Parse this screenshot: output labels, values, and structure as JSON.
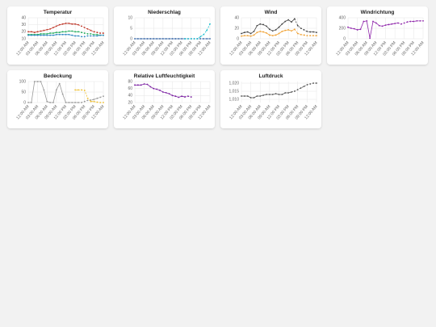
{
  "chart_data": [
    {
      "type": "line",
      "title": "Temperatur",
      "grid": true,
      "forecast_from": 17,
      "categories": [
        "12:00 AM",
        null,
        null,
        "03:00 AM",
        null,
        null,
        "06:00 AM",
        null,
        null,
        "09:00 AM",
        null,
        null,
        "12:00 PM",
        null,
        null,
        "03:00 PM",
        null,
        null,
        "06:00 PM",
        null,
        null,
        "09:00 PM",
        null,
        null,
        "12:00 AM"
      ],
      "ylim": [
        10,
        40
      ],
      "yticks": [
        10,
        20,
        30,
        40
      ],
      "series": [
        {
          "color": "#c0392b",
          "values": [
            20,
            20,
            19,
            20,
            21,
            22,
            23,
            24,
            26,
            28,
            30,
            31,
            32,
            32,
            31,
            31,
            30,
            28,
            26,
            24,
            22,
            20,
            19,
            18,
            18
          ]
        },
        {
          "color": "#27ae60",
          "values": [
            16,
            16,
            16,
            16,
            17,
            17,
            17,
            18,
            18,
            19,
            19,
            20,
            20,
            21,
            21,
            20,
            20,
            19,
            18,
            17,
            17,
            16,
            16,
            15,
            15
          ]
        },
        {
          "color": "#2e86c1",
          "values": [
            15,
            15,
            15,
            15,
            15,
            15,
            15,
            15,
            15,
            16,
            16,
            16,
            16,
            16,
            15,
            14,
            14,
            13,
            13,
            14,
            14,
            14,
            14,
            15,
            15
          ]
        }
      ]
    },
    {
      "type": "line",
      "title": "Niederschlag",
      "grid": true,
      "forecast_from": 17,
      "categories": [
        "12:00 AM",
        null,
        null,
        "03:00 AM",
        null,
        null,
        "06:00 AM",
        null,
        null,
        "09:00 AM",
        null,
        null,
        "12:00 PM",
        null,
        null,
        "03:00 PM",
        null,
        null,
        "06:00 PM",
        null,
        null,
        "09:00 PM",
        null,
        null,
        "12:00 AM"
      ],
      "ylim": [
        0,
        10
      ],
      "yticks": [
        0,
        5,
        10
      ],
      "series": [
        {
          "color": "#2e5fa3",
          "values": [
            0,
            0,
            0,
            0,
            0,
            0,
            0,
            0,
            0,
            0,
            0,
            0,
            0,
            0,
            0,
            0,
            0,
            0,
            0,
            0,
            0,
            0,
            0,
            0,
            0
          ]
        },
        {
          "color": "#17becf",
          "values": [
            null,
            null,
            null,
            null,
            null,
            null,
            null,
            null,
            null,
            null,
            null,
            null,
            null,
            null,
            null,
            null,
            0,
            0,
            0,
            0,
            0,
            1,
            2,
            4,
            7
          ]
        }
      ]
    },
    {
      "type": "line",
      "title": "Wind",
      "grid": true,
      "forecast_from": 18,
      "categories": [
        "12:00 AM",
        null,
        null,
        "03:00 AM",
        null,
        null,
        "06:00 AM",
        null,
        null,
        "09:00 AM",
        null,
        null,
        "12:00 PM",
        null,
        null,
        "03:00 PM",
        null,
        null,
        "06:00 PM",
        null,
        null,
        "09:00 PM",
        null,
        null,
        "12:00 AM"
      ],
      "ylim": [
        0,
        40
      ],
      "yticks": [
        0,
        20,
        40
      ],
      "series": [
        {
          "color": "#444444",
          "values": [
            10,
            12,
            13,
            10,
            14,
            25,
            28,
            27,
            24,
            18,
            15,
            17,
            22,
            28,
            33,
            36,
            32,
            38,
            25,
            20,
            17,
            14,
            13,
            13,
            12
          ]
        },
        {
          "color": "#f0a030",
          "values": [
            5,
            6,
            6,
            5,
            7,
            12,
            14,
            13,
            11,
            7,
            6,
            7,
            10,
            14,
            16,
            17,
            15,
            18,
            10,
            8,
            7,
            6,
            6,
            6,
            6
          ]
        }
      ]
    },
    {
      "type": "line",
      "title": "Windrichtung",
      "grid": true,
      "forecast_from": 17,
      "categories": [
        "12:00 AM",
        null,
        null,
        "03:00 AM",
        null,
        null,
        "06:00 AM",
        null,
        null,
        "09:00 AM",
        null,
        null,
        "12:00 PM",
        null,
        null,
        "03:00 PM",
        null,
        null,
        "06:00 PM",
        null,
        null,
        "09:00 PM",
        null,
        null,
        "12:00 AM"
      ],
      "ylim": [
        0,
        400
      ],
      "yticks": [
        0,
        200,
        400
      ],
      "series": [
        {
          "color": "#8e24aa",
          "values": [
            220,
            200,
            190,
            170,
            180,
            330,
            340,
            10,
            330,
            300,
            250,
            240,
            260,
            270,
            280,
            290,
            300,
            280,
            300,
            320,
            330,
            330,
            340,
            340,
            340
          ]
        }
      ]
    },
    {
      "type": "line",
      "title": "Bedeckung",
      "grid": true,
      "forecast_from": 17,
      "categories": [
        "12:00 AM",
        null,
        null,
        "03:00 AM",
        null,
        null,
        "06:00 AM",
        null,
        null,
        "09:00 AM",
        null,
        null,
        "12:00 PM",
        null,
        null,
        "03:00 PM",
        null,
        null,
        "06:00 PM",
        null,
        null,
        "09:00 PM",
        null,
        null,
        "12:00 AM"
      ],
      "ylim": [
        0,
        100
      ],
      "yticks": [
        0,
        50,
        100
      ],
      "series": [
        {
          "color": "#999999",
          "values": [
            0,
            0,
            100,
            100,
            100,
            60,
            5,
            0,
            0,
            60,
            90,
            40,
            0,
            0,
            0,
            0,
            0,
            0,
            5,
            10,
            12,
            15,
            20,
            25,
            30
          ]
        },
        {
          "color": "#f0c030",
          "values": [
            null,
            null,
            null,
            null,
            null,
            null,
            null,
            null,
            null,
            null,
            null,
            null,
            null,
            null,
            null,
            60,
            60,
            60,
            58,
            20,
            5,
            5,
            2,
            0,
            0
          ]
        }
      ]
    },
    {
      "type": "line",
      "title": "Relative Luftfeuchtigkeit",
      "grid": true,
      "forecast_from": 17,
      "categories": [
        "12:00 AM",
        null,
        null,
        "03:00 AM",
        null,
        null,
        "06:00 AM",
        null,
        null,
        "09:00 AM",
        null,
        null,
        "12:00 PM",
        null,
        null,
        "03:00 PM",
        null,
        null,
        "06:00 PM",
        null,
        null,
        "09:00 PM",
        null,
        null,
        "12:00 AM"
      ],
      "ylim": [
        20,
        80
      ],
      "yticks": [
        20,
        40,
        60,
        80
      ],
      "series": [
        {
          "color": "#7b1fa2",
          "values": [
            70,
            70,
            70,
            73,
            72,
            65,
            60,
            58,
            55,
            50,
            48,
            45,
            40,
            38,
            35,
            38,
            36,
            38,
            36,
            null,
            null,
            null,
            null,
            null,
            null
          ]
        }
      ]
    },
    {
      "type": "line",
      "title": "Luftdruck",
      "grid": true,
      "forecast_from": 17,
      "categories": [
        "12:00 AM",
        null,
        null,
        "03:00 AM",
        null,
        null,
        "06:00 AM",
        null,
        null,
        "09:00 AM",
        null,
        null,
        "12:00 PM",
        null,
        null,
        "03:00 PM",
        null,
        null,
        "06:00 PM",
        null,
        null,
        "09:00 PM",
        null,
        null,
        "12:00 AM"
      ],
      "ylim": [
        1008,
        1021
      ],
      "yticks": [
        {
          "value": 1010,
          "label": "1,010"
        },
        {
          "value": 1015,
          "label": "1,015"
        },
        {
          "value": 1020,
          "label": "1,020"
        }
      ],
      "series": [
        {
          "color": "#555555",
          "values": [
            1012,
            1012,
            1012,
            1011,
            1011,
            1012,
            1012,
            1012.5,
            1013,
            1013,
            1013,
            1013.5,
            1013,
            1013,
            1014,
            1014,
            1014.5,
            1015,
            1016,
            1017,
            1018,
            1019,
            1019.5,
            1020,
            1020
          ]
        }
      ]
    }
  ]
}
